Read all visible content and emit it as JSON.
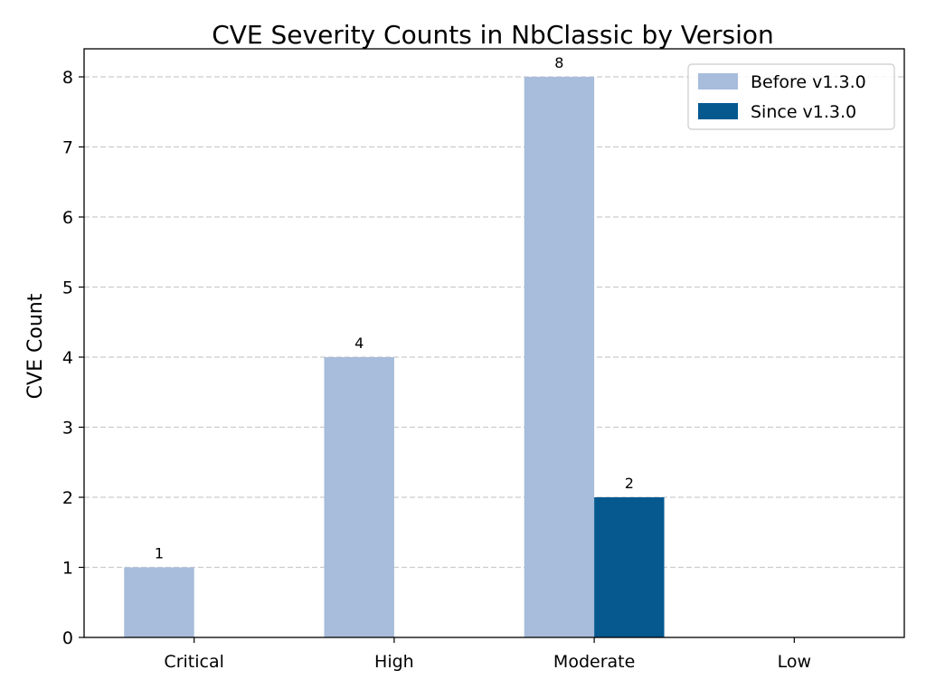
{
  "chart_data": {
    "type": "bar",
    "title": "CVE Severity Counts in NbClassic by Version",
    "xlabel": "",
    "ylabel": "CVE Count",
    "categories": [
      "Critical",
      "High",
      "Moderate",
      "Low"
    ],
    "series": [
      {
        "name": "Before v1.3.0",
        "color": "#a8bcdb",
        "values": [
          1,
          4,
          8,
          0
        ]
      },
      {
        "name": "Since v1.3.0",
        "color": "#05598f",
        "values": [
          0,
          0,
          2,
          0
        ]
      }
    ],
    "ylim": [
      0,
      8.4
    ],
    "yticks": [
      0,
      1,
      2,
      3,
      4,
      5,
      6,
      7,
      8
    ],
    "grid": "y-dashed",
    "legend": "top-right",
    "data_labels": "shown-on-nonzero-bars"
  }
}
